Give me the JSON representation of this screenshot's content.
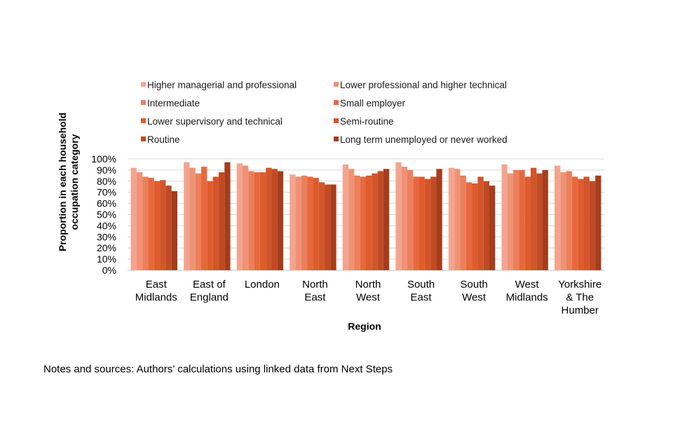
{
  "chart_data": {
    "type": "bar",
    "xlabel": "Region",
    "ylabel": "Proportion in each household occupation category",
    "ylim": [
      0,
      100
    ],
    "yticks": [
      "0%",
      "10%",
      "20%",
      "30%",
      "40%",
      "50%",
      "60%",
      "70%",
      "80%",
      "90%",
      "100%"
    ],
    "grid": true,
    "legend_placement": "top",
    "categories": [
      [
        "East",
        "Midlands"
      ],
      [
        "East of",
        "England"
      ],
      [
        "London"
      ],
      [
        "North",
        "East"
      ],
      [
        "North",
        "West"
      ],
      [
        "South",
        "East"
      ],
      [
        "South",
        "West"
      ],
      [
        "West",
        "Midlands"
      ],
      [
        "Yorkshire",
        "& The",
        "Humber"
      ]
    ],
    "series": [
      {
        "name": "Higher managerial and professional",
        "color": "#f4a48e",
        "values": [
          92,
          97,
          96,
          86,
          95,
          97,
          92,
          95,
          94
        ]
      },
      {
        "name": "Lower professional and higher technical",
        "color": "#f09276",
        "values": [
          88,
          92,
          94,
          84,
          91,
          93,
          91,
          87,
          88
        ]
      },
      {
        "name": "Intermediate",
        "color": "#ec7f5c",
        "values": [
          84,
          87,
          89,
          85,
          85,
          90,
          85,
          90,
          89
        ]
      },
      {
        "name": "Small employer",
        "color": "#e8683e",
        "values": [
          83,
          93,
          88,
          84,
          84,
          84,
          79,
          90,
          84
        ]
      },
      {
        "name": "Lower supervisory and technical",
        "color": "#de5b2d",
        "values": [
          80,
          80,
          88,
          83,
          85,
          84,
          78,
          84,
          82
        ]
      },
      {
        "name": "Semi-routine",
        "color": "#d2552b",
        "values": [
          81,
          84,
          92,
          79,
          87,
          82,
          84,
          92,
          84
        ]
      },
      {
        "name": "Routine",
        "color": "#c04a24",
        "values": [
          76,
          88,
          91,
          77,
          89,
          84,
          80,
          87,
          80
        ]
      },
      {
        "name": "Long term unemployed or never worked",
        "color": "#a53d1c",
        "values": [
          71,
          97,
          89,
          77,
          91,
          91,
          76,
          90,
          85
        ]
      }
    ]
  },
  "notes": "Notes and sources: Authors’ calculations using linked data from Next Steps"
}
